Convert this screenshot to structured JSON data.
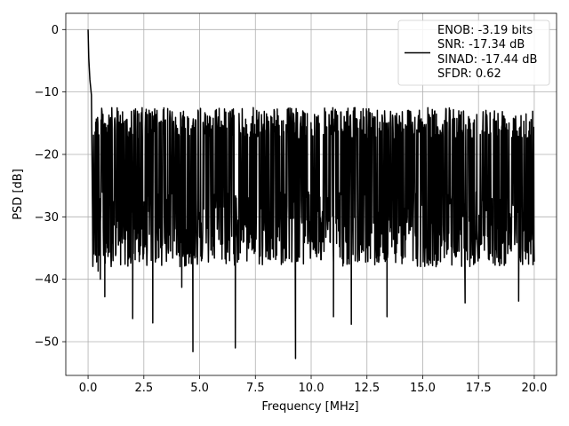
{
  "chart_data": {
    "type": "line",
    "title": "",
    "xlabel": "Frequency [MHz]",
    "ylabel": "PSD [dB]",
    "xlim": [
      -0.999,
      20.999
    ],
    "ylim": [
      -55.4,
      2.6
    ],
    "x_ticks": [
      0.0,
      2.5,
      5.0,
      7.5,
      10.0,
      12.5,
      15.0,
      17.5,
      20.0
    ],
    "x_tick_labels": [
      "0.0",
      "2.5",
      "5.0",
      "7.5",
      "10.0",
      "12.5",
      "15.0",
      "17.5",
      "20.0"
    ],
    "y_ticks": [
      0,
      -10,
      -20,
      -30,
      -40,
      -50
    ],
    "y_tick_labels": [
      "0",
      "−10",
      "−20",
      "−30",
      "−40",
      "−50"
    ],
    "grid": true,
    "legend_placement": "upper right",
    "line_color": "#000000",
    "series": [
      {
        "style": "solid black line",
        "x_range": [
          0.0,
          20.0
        ],
        "noise_envelope": {
          "upper_db": -12.5,
          "typical_db": -22,
          "lower_db": -36
        },
        "peaks": [
          {
            "x": 0.0,
            "y": 0.0
          },
          {
            "x": 0.03,
            "y": -4.5
          },
          {
            "x": 0.08,
            "y": -8.0
          },
          {
            "x": 0.15,
            "y": -10.5
          }
        ],
        "dips": [
          {
            "x": 0.45,
            "y": -38.7
          },
          {
            "x": 0.55,
            "y": -40.0
          },
          {
            "x": 0.75,
            "y": -42.8
          },
          {
            "x": 2.0,
            "y": -46.3
          },
          {
            "x": 2.9,
            "y": -47.0
          },
          {
            "x": 4.2,
            "y": -41.3
          },
          {
            "x": 4.7,
            "y": -51.6
          },
          {
            "x": 6.6,
            "y": -51.0
          },
          {
            "x": 9.3,
            "y": -52.7
          },
          {
            "x": 11.0,
            "y": -46.0
          },
          {
            "x": 11.8,
            "y": -47.2
          },
          {
            "x": 13.4,
            "y": -46.0
          },
          {
            "x": 16.9,
            "y": -43.8
          },
          {
            "x": 19.3,
            "y": -43.5
          }
        ]
      }
    ],
    "legend": {
      "lines": [
        "ENOB: -3.19 bits",
        "SNR: -17.34 dB",
        "SINAD: -17.44 dB",
        "SFDR: 0.62"
      ]
    }
  }
}
